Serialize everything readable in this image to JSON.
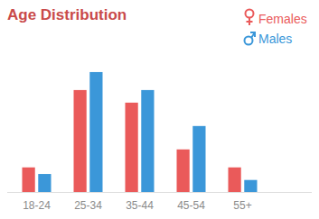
{
  "chart_data": {
    "type": "bar",
    "title": "Age Distribution",
    "categories": [
      "18-24",
      "25-34",
      "35-44",
      "45-54",
      "55+"
    ],
    "series": [
      {
        "name": "Females",
        "color": "#ea5a5a",
        "values": [
          4.1,
          17,
          14.9,
          7.1,
          4.1
        ]
      },
      {
        "name": "Males",
        "color": "#3b97d9",
        "values": [
          3,
          20,
          17,
          11,
          2
        ]
      }
    ],
    "ylim": [
      0,
      23
    ],
    "tick_labels": "x",
    "legend": "top-right"
  }
}
